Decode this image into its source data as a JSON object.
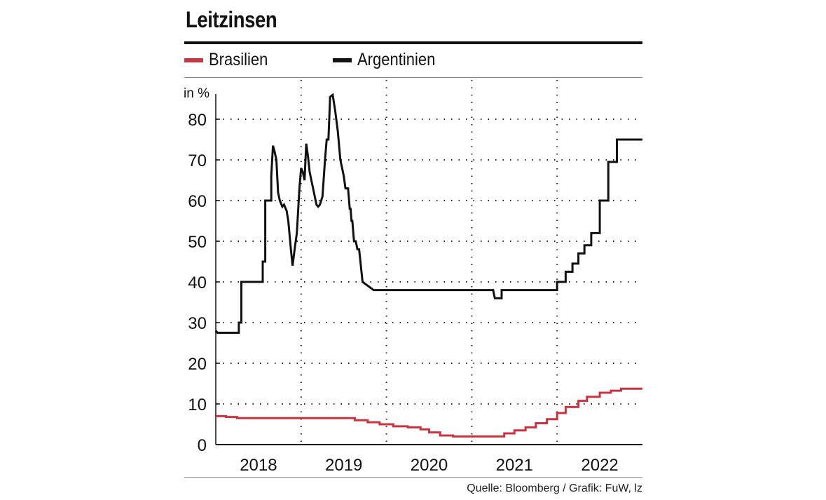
{
  "header": {
    "title": "Leitzinsen"
  },
  "footer": {
    "source": "Quelle: Bloomberg / Grafik: FuW, lz"
  },
  "colors": {
    "brasilien": "#cc3340",
    "argentinien": "#111111",
    "grid": "#222222"
  },
  "chart_data": {
    "type": "line",
    "title": "Leitzinsen",
    "ylabel": "in %",
    "xlabel": "",
    "ylim": [
      0,
      87
    ],
    "xlim": [
      2017.5,
      2022.5
    ],
    "yticks": [
      0,
      10,
      20,
      30,
      40,
      50,
      60,
      70,
      80
    ],
    "ytick_labels": [
      "0",
      "10",
      "20",
      "30",
      "40",
      "50",
      "60",
      "70",
      "80"
    ],
    "xtick_labels": [
      "2018",
      "2019",
      "2020",
      "2021",
      "2022"
    ],
    "xtick_centers": [
      2018.0,
      2019.0,
      2020.0,
      2021.0,
      2022.0
    ],
    "year_boundaries": [
      2018.5,
      2019.5,
      2020.5,
      2021.5
    ],
    "grid": true,
    "legend_position": "top",
    "series": [
      {
        "name": "Brasilien",
        "color": "#cc3340",
        "step": true,
        "x": [
          2017.5,
          2017.62,
          2017.75,
          2018.0,
          2018.5,
          2018.75,
          2019.0,
          2019.13,
          2019.28,
          2019.42,
          2019.58,
          2019.75,
          2019.9,
          2020.0,
          2020.13,
          2020.28,
          2020.42,
          2020.58,
          2020.75,
          2020.88,
          2021.0,
          2021.13,
          2021.25,
          2021.38,
          2021.5,
          2021.6,
          2021.75,
          2021.85,
          2022.0,
          2022.13,
          2022.25,
          2022.5
        ],
        "values": [
          7.0,
          6.8,
          6.5,
          6.5,
          6.5,
          6.5,
          6.5,
          6.0,
          5.5,
          5.0,
          4.5,
          4.25,
          3.75,
          3.0,
          2.25,
          2.0,
          2.0,
          2.0,
          2.0,
          2.75,
          3.5,
          4.25,
          5.25,
          6.25,
          7.75,
          9.25,
          10.75,
          11.75,
          12.75,
          13.25,
          13.75,
          13.75
        ]
      },
      {
        "name": "Argentinien",
        "color": "#111111",
        "step": false,
        "x": [
          2017.5,
          2017.52,
          2017.56,
          2017.56,
          2017.77,
          2017.77,
          2017.8,
          2017.8,
          2018.05,
          2018.05,
          2018.08,
          2018.08,
          2018.15,
          2018.15,
          2018.17,
          2018.19,
          2018.21,
          2018.23,
          2018.25,
          2018.28,
          2018.3,
          2018.33,
          2018.35,
          2018.38,
          2018.4,
          2018.43,
          2018.45,
          2018.48,
          2018.5,
          2018.52,
          2018.54,
          2018.56,
          2018.58,
          2018.6,
          2018.62,
          2018.65,
          2018.68,
          2018.7,
          2018.72,
          2018.75,
          2018.78,
          2018.8,
          2018.82,
          2018.84,
          2018.87,
          2018.9,
          2018.93,
          2018.96,
          2018.98,
          2019.0,
          2019.02,
          2019.05,
          2019.05,
          2019.07,
          2019.08,
          2019.09,
          2019.1,
          2019.12,
          2019.14,
          2019.16,
          2019.18,
          2019.22,
          2019.22,
          2019.35,
          2019.35,
          2019.38,
          2019.38,
          2019.41,
          2019.41,
          2019.44,
          2019.44,
          2019.47,
          2019.47,
          2019.54,
          2019.54,
          2020.75,
          2020.77,
          2020.79,
          2020.85,
          2020.85,
          2021.5,
          2021.5,
          2021.6,
          2021.6,
          2021.68,
          2021.68,
          2021.75,
          2021.75,
          2021.82,
          2021.82,
          2021.9,
          2021.9,
          2022.0,
          2022.0,
          2022.1,
          2022.1,
          2022.2,
          2022.2,
          2022.5
        ],
        "values": [
          28.0,
          27.5,
          27.5,
          27.5,
          27.5,
          30.0,
          30.0,
          40.0,
          40.0,
          45.0,
          45.0,
          60.0,
          60.0,
          66.0,
          73.5,
          72.0,
          70.0,
          62.0,
          60.0,
          58.5,
          59.0,
          57.5,
          55.0,
          48.0,
          44.0,
          49.0,
          52.0,
          63.0,
          68.0,
          67.0,
          65.0,
          74.0,
          71.0,
          67.0,
          65.0,
          62.0,
          59.0,
          58.5,
          59.0,
          61.0,
          70.0,
          75.0,
          75.0,
          85.5,
          86.0,
          82.0,
          77.0,
          70.0,
          68.0,
          66.0,
          63.0,
          63.0,
          63.0,
          58.0,
          58.0,
          55.0,
          55.0,
          50.0,
          50.0,
          48.0,
          48.0,
          40.0,
          40.0,
          38.0,
          38.0,
          38.0,
          38.0,
          38.0,
          38.0,
          38.0,
          38.0,
          38.0,
          38.0,
          38.0,
          38.0,
          38.0,
          36.0,
          36.0,
          36.0,
          38.0,
          38.0,
          40.0,
          40.0,
          42.5,
          42.5,
          44.5,
          44.5,
          47.0,
          47.0,
          49.0,
          49.0,
          52.0,
          52.0,
          60.0,
          60.0,
          69.5,
          69.5,
          75.0,
          75.0
        ]
      }
    ]
  }
}
